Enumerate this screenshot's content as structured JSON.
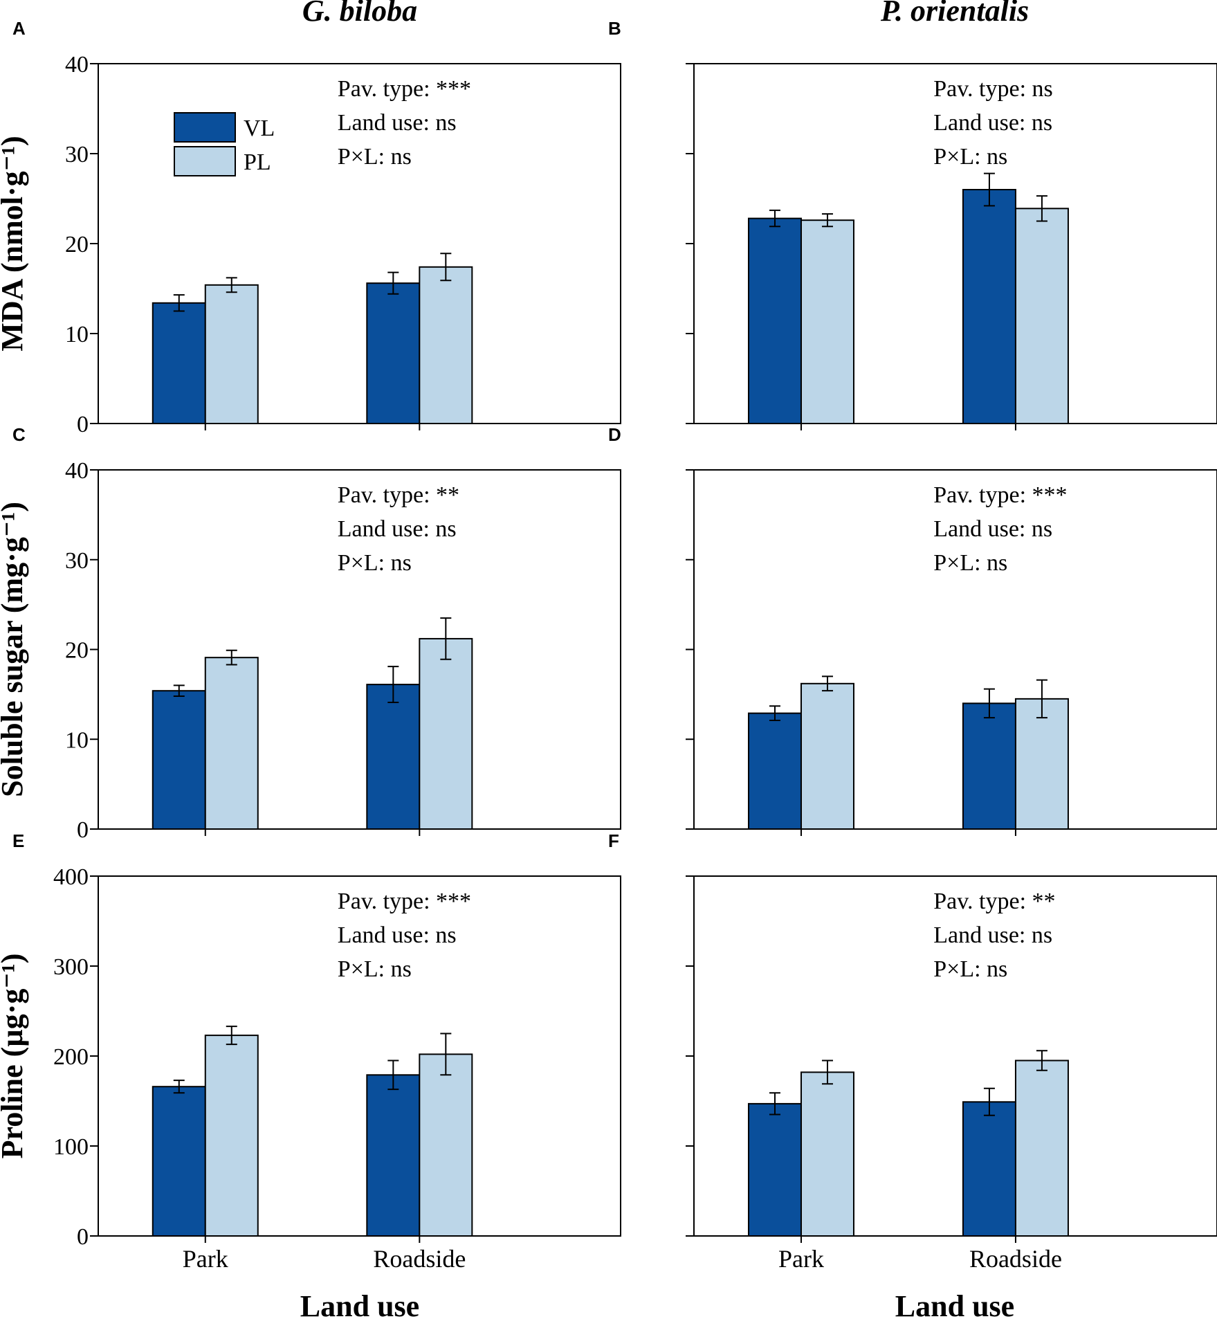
{
  "figure": {
    "x_axis_title": "Land use",
    "column_titles": [
      "G. biloba",
      "P. orientalis"
    ],
    "colors": {
      "VL": "#0a4f9b",
      "PL": "#bcd6e8",
      "stroke": "#000000"
    }
  },
  "legend": {
    "items": [
      {
        "key": "VL",
        "label": "VL"
      },
      {
        "key": "PL",
        "label": "PL"
      }
    ]
  },
  "chart_data": [
    {
      "panel": "A",
      "type": "bar",
      "species": "G. biloba",
      "ylabel": "MDA (nmol·g⁻¹)",
      "ylim": [
        0,
        40
      ],
      "yticks": [
        0,
        10,
        20,
        30,
        40
      ],
      "categories": [
        "Park",
        "Roadside"
      ],
      "series": [
        {
          "name": "VL",
          "values": [
            13.4,
            15.6
          ],
          "errors": [
            0.9,
            1.2
          ]
        },
        {
          "name": "PL",
          "values": [
            15.4,
            17.4
          ],
          "errors": [
            0.8,
            1.5
          ]
        }
      ],
      "stats": [
        "Pav. type: ***",
        "Land use: ns",
        "P×L: ns"
      ]
    },
    {
      "panel": "B",
      "type": "bar",
      "species": "P. orientalis",
      "ylabel": "",
      "ylim": [
        0,
        40
      ],
      "yticks": [
        0,
        10,
        20,
        30,
        40
      ],
      "categories": [
        "Park",
        "Roadside"
      ],
      "series": [
        {
          "name": "VL",
          "values": [
            22.8,
            26.0
          ],
          "errors": [
            0.9,
            1.8
          ]
        },
        {
          "name": "PL",
          "values": [
            22.6,
            23.9
          ],
          "errors": [
            0.7,
            1.4
          ]
        }
      ],
      "stats": [
        "Pav. type: ns",
        "Land use: ns",
        "P×L: ns"
      ]
    },
    {
      "panel": "C",
      "type": "bar",
      "species": "G. biloba",
      "ylabel": "Soluble sugar (mg·g⁻¹)",
      "ylim": [
        0,
        40
      ],
      "yticks": [
        0,
        10,
        20,
        30,
        40
      ],
      "categories": [
        "Park",
        "Roadside"
      ],
      "series": [
        {
          "name": "VL",
          "values": [
            15.4,
            16.1
          ],
          "errors": [
            0.6,
            2.0
          ]
        },
        {
          "name": "PL",
          "values": [
            19.1,
            21.2
          ],
          "errors": [
            0.8,
            2.3
          ]
        }
      ],
      "stats": [
        "Pav. type: **",
        "Land use: ns",
        "P×L: ns"
      ]
    },
    {
      "panel": "D",
      "type": "bar",
      "species": "P. orientalis",
      "ylabel": "",
      "ylim": [
        0,
        40
      ],
      "yticks": [
        0,
        10,
        20,
        30,
        40
      ],
      "categories": [
        "Park",
        "Roadside"
      ],
      "series": [
        {
          "name": "VL",
          "values": [
            12.9,
            14.0
          ],
          "errors": [
            0.8,
            1.6
          ]
        },
        {
          "name": "PL",
          "values": [
            16.2,
            14.5
          ],
          "errors": [
            0.8,
            2.1
          ]
        }
      ],
      "stats": [
        "Pav. type: ***",
        "Land use: ns",
        "P×L: ns"
      ]
    },
    {
      "panel": "E",
      "type": "bar",
      "species": "G. biloba",
      "ylabel": "Proline (µg·g⁻¹)",
      "ylim": [
        0,
        400
      ],
      "yticks": [
        0,
        100,
        200,
        300,
        400
      ],
      "categories": [
        "Park",
        "Roadside"
      ],
      "series": [
        {
          "name": "VL",
          "values": [
            166,
            179
          ],
          "errors": [
            7,
            16
          ]
        },
        {
          "name": "PL",
          "values": [
            223,
            202
          ],
          "errors": [
            10,
            23
          ]
        }
      ],
      "stats": [
        "Pav. type: ***",
        "Land use: ns",
        "P×L: ns"
      ]
    },
    {
      "panel": "F",
      "type": "bar",
      "species": "P. orientalis",
      "ylabel": "",
      "ylim": [
        0,
        400
      ],
      "yticks": [
        0,
        100,
        200,
        300,
        400
      ],
      "categories": [
        "Park",
        "Roadside"
      ],
      "series": [
        {
          "name": "VL",
          "values": [
            147,
            149
          ],
          "errors": [
            12,
            15
          ]
        },
        {
          "name": "PL",
          "values": [
            182,
            195
          ],
          "errors": [
            13,
            11
          ]
        }
      ],
      "stats": [
        "Pav. type: **",
        "Land use: ns",
        "P×L: ns"
      ]
    }
  ]
}
